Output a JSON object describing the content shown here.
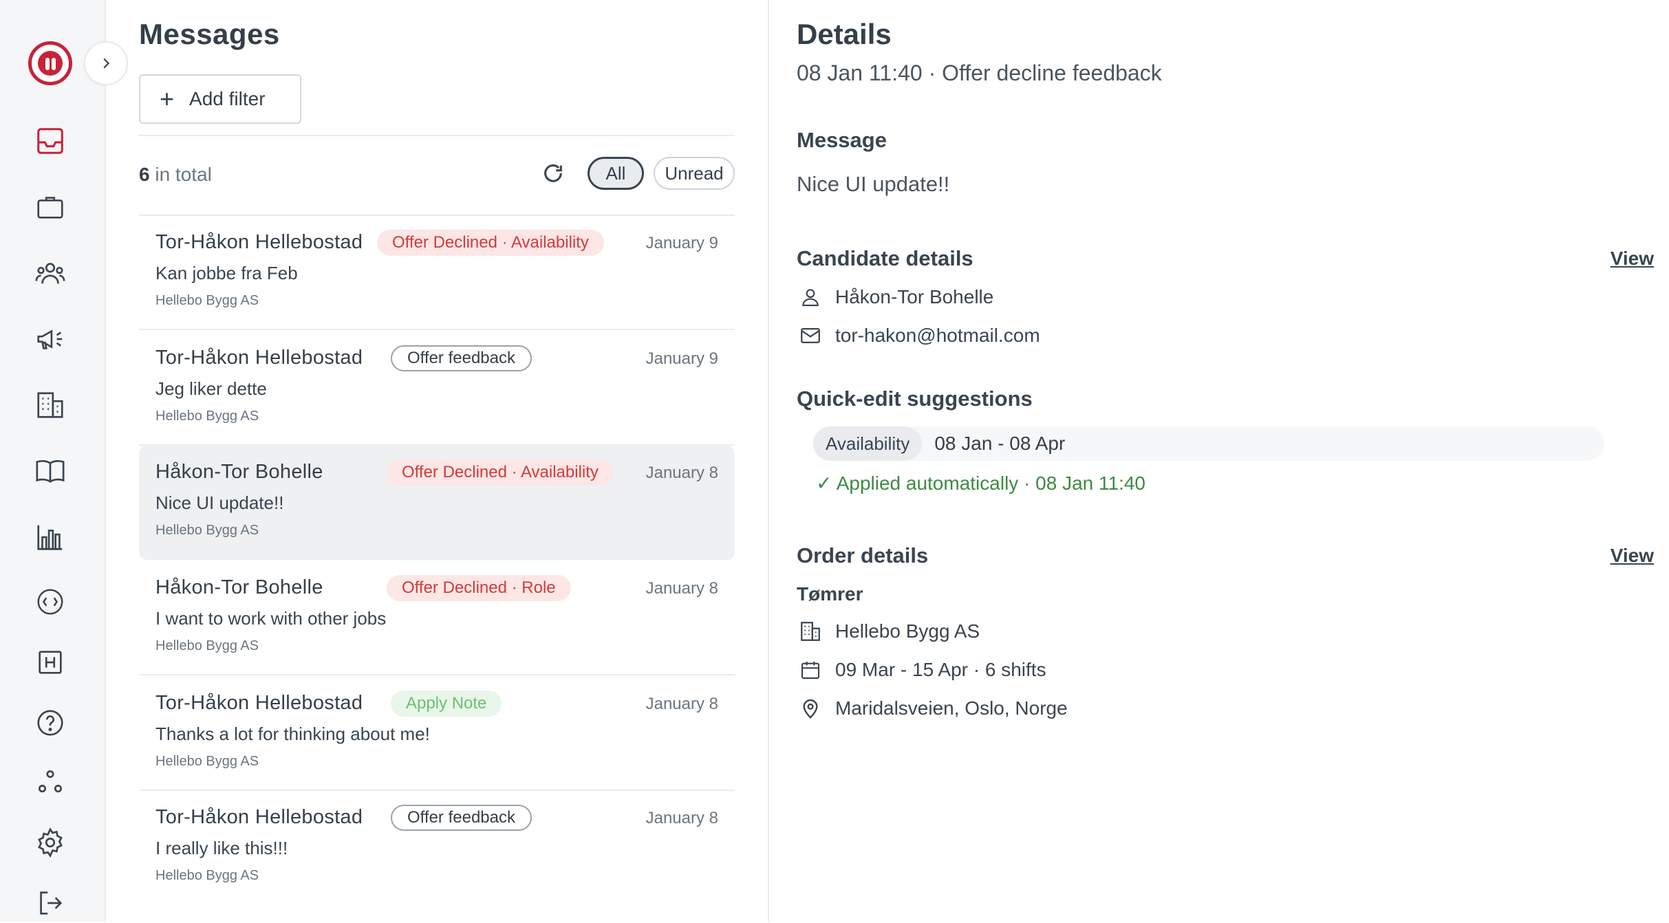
{
  "sidebar": {
    "nav": [
      "inbox-icon",
      "briefcase-icon",
      "users-icon",
      "megaphone-icon",
      "building-icon",
      "book-icon",
      "chart-icon",
      "code-icon",
      "hotel-icon",
      "help-icon",
      "network-icon",
      "settings-icon",
      "logout-icon"
    ]
  },
  "messages": {
    "title": "Messages",
    "add_filter": "Add filter",
    "total_count": "6",
    "total_label": " in total",
    "filter_all": "All",
    "filter_unread": "Unread",
    "items": [
      {
        "name": "Tor-Håkon Hellebostad",
        "tag": "Offer Declined · Availability",
        "tag_style": "red",
        "date": "January 9",
        "text": "Kan jobbe fra Feb",
        "company": "Hellebo Bygg AS"
      },
      {
        "name": "Tor-Håkon Hellebostad",
        "tag": "Offer feedback",
        "tag_style": "outline",
        "date": "January 9",
        "text": "Jeg liker dette",
        "company": "Hellebo Bygg AS"
      },
      {
        "name": "Håkon-Tor Bohelle",
        "tag": "Offer Declined · Availability",
        "tag_style": "red",
        "date": "January 8",
        "text": "Nice UI update!!",
        "company": "Hellebo Bygg AS"
      },
      {
        "name": "Håkon-Tor Bohelle",
        "tag": "Offer Declined · Role",
        "tag_style": "red",
        "date": "January 8",
        "text": "I want to work with other jobs",
        "company": "Hellebo Bygg AS"
      },
      {
        "name": "Tor-Håkon Hellebostad",
        "tag": "Apply Note",
        "tag_style": "green",
        "date": "January 8",
        "text": "Thanks a lot for thinking about me!",
        "company": "Hellebo Bygg AS"
      },
      {
        "name": "Tor-Håkon Hellebostad",
        "tag": "Offer feedback",
        "tag_style": "outline",
        "date": "January 8",
        "text": "I really like this!!!",
        "company": "Hellebo Bygg AS"
      }
    ]
  },
  "details": {
    "title": "Details",
    "subtitle": "08 Jan 11:40 · Offer decline feedback",
    "message_heading": "Message",
    "message_text": "Nice UI update!!",
    "candidate_heading": "Candidate details",
    "candidate_view": "View",
    "candidate_name": "Håkon-Tor Bohelle",
    "candidate_email": "tor-hakon@hotmail.com",
    "quick_heading": "Quick-edit suggestions",
    "quick_chip": "Availability",
    "quick_value": "08 Jan - 08 Apr",
    "applied": "✓ Applied automatically · 08 Jan 11:40",
    "order_heading": "Order details",
    "order_view": "View",
    "order_role": "Tømrer",
    "order_company": "Hellebo Bygg AS",
    "order_dates": "09 Mar - 15 Apr · 6 shifts",
    "order_location": "Maridalsveien, Oslo, Norge"
  },
  "colors": {
    "brand": "#c8233a",
    "tag_red_bg": "#fde6e6",
    "tag_red_text": "#d33a3a",
    "applied_green": "#3c8a44"
  }
}
